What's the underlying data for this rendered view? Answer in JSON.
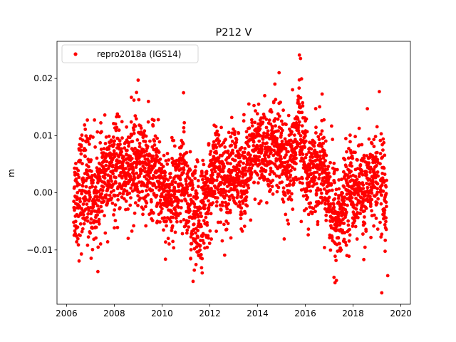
{
  "chart_data": {
    "type": "scatter",
    "title": "P212 V",
    "xlabel": "",
    "ylabel": "m",
    "xlim": [
      2005.6,
      2020.4
    ],
    "ylim": [
      -0.0195,
      0.0265
    ],
    "x_ticks": [
      2006,
      2008,
      2010,
      2012,
      2014,
      2016,
      2018,
      2020
    ],
    "x_tick_labels": [
      "2006",
      "2008",
      "2010",
      "2012",
      "2014",
      "2016",
      "2018",
      "2020"
    ],
    "y_ticks": [
      -0.01,
      0.0,
      0.01,
      0.02
    ],
    "y_tick_labels": [
      "−0.01",
      "0.00",
      "0.01",
      "0.02"
    ],
    "grid": false,
    "legend_position": "top-left",
    "marker_color": "#ff0000",
    "series": [
      {
        "name": "repro2018a (IGS14)",
        "color": "#ff0000",
        "x": [
          2006.3,
          2006.5,
          2006.7,
          2006.9,
          2007.1,
          2007.3,
          2007.5,
          2007.7,
          2007.9,
          2008.1,
          2008.3,
          2008.5,
          2008.7,
          2008.9,
          2009.1,
          2009.3,
          2009.5,
          2009.7,
          2009.9,
          2010.1,
          2010.3,
          2010.5,
          2010.7,
          2010.9,
          2011.1,
          2011.3,
          2011.5,
          2011.7,
          2011.9,
          2012.1,
          2012.3,
          2012.5,
          2012.7,
          2012.9,
          2013.1,
          2013.3,
          2013.5,
          2013.7,
          2013.9,
          2014.1,
          2014.3,
          2014.5,
          2014.7,
          2014.9,
          2015.1,
          2015.3,
          2015.5,
          2015.7,
          2015.9,
          2016.1,
          2016.3,
          2016.5,
          2016.7,
          2016.9,
          2017.1,
          2017.3,
          2017.5,
          2017.7,
          2017.9,
          2018.1,
          2018.3,
          2018.5,
          2018.7,
          2018.9,
          2019.1,
          2019.3,
          2019.4
        ],
        "y": [
          -0.001,
          0.0,
          0.001,
          0.002,
          -0.001,
          0.0,
          0.002,
          0.003,
          0.003,
          0.004,
          0.005,
          0.003,
          0.004,
          0.006,
          0.005,
          0.004,
          0.003,
          0.004,
          0.002,
          0.0,
          -0.001,
          0.001,
          0.0,
          0.002,
          -0.001,
          -0.004,
          -0.006,
          -0.003,
          -0.001,
          0.002,
          0.004,
          0.003,
          0.002,
          0.004,
          0.003,
          0.002,
          0.004,
          0.005,
          0.007,
          0.008,
          0.007,
          0.006,
          0.009,
          0.007,
          0.004,
          0.003,
          0.006,
          0.012,
          0.008,
          0.003,
          0.004,
          0.005,
          0.006,
          0.002,
          -0.002,
          -0.005,
          -0.004,
          -0.001,
          0.002,
          0.0,
          0.001,
          -0.001,
          0.002,
          0.003,
          0.002,
          0.001,
          -0.004
        ],
        "spread": [
          0.004,
          0.005,
          0.005,
          0.005,
          0.005,
          0.004,
          0.004,
          0.004,
          0.004,
          0.004,
          0.004,
          0.004,
          0.004,
          0.005,
          0.004,
          0.004,
          0.004,
          0.004,
          0.004,
          0.004,
          0.004,
          0.004,
          0.004,
          0.005,
          0.004,
          0.005,
          0.005,
          0.004,
          0.004,
          0.004,
          0.004,
          0.004,
          0.004,
          0.004,
          0.004,
          0.004,
          0.004,
          0.004,
          0.004,
          0.004,
          0.004,
          0.004,
          0.005,
          0.004,
          0.004,
          0.004,
          0.004,
          0.005,
          0.004,
          0.004,
          0.004,
          0.004,
          0.004,
          0.004,
          0.005,
          0.005,
          0.004,
          0.004,
          0.004,
          0.004,
          0.004,
          0.004,
          0.004,
          0.004,
          0.004,
          0.005,
          0.005
        ],
        "notable_points": [
          {
            "x": 2009.0,
            "y": 0.0197
          },
          {
            "x": 2010.9,
            "y": 0.0175
          },
          {
            "x": 2011.3,
            "y": -0.0155
          },
          {
            "x": 2014.9,
            "y": 0.021
          },
          {
            "x": 2015.75,
            "y": 0.0241
          },
          {
            "x": 2015.8,
            "y": 0.0235
          },
          {
            "x": 2017.2,
            "y": -0.0148
          },
          {
            "x": 2019.1,
            "y": 0.0177
          },
          {
            "x": 2019.2,
            "y": -0.0175
          },
          {
            "x": 2019.45,
            "y": -0.0145
          }
        ]
      }
    ]
  }
}
